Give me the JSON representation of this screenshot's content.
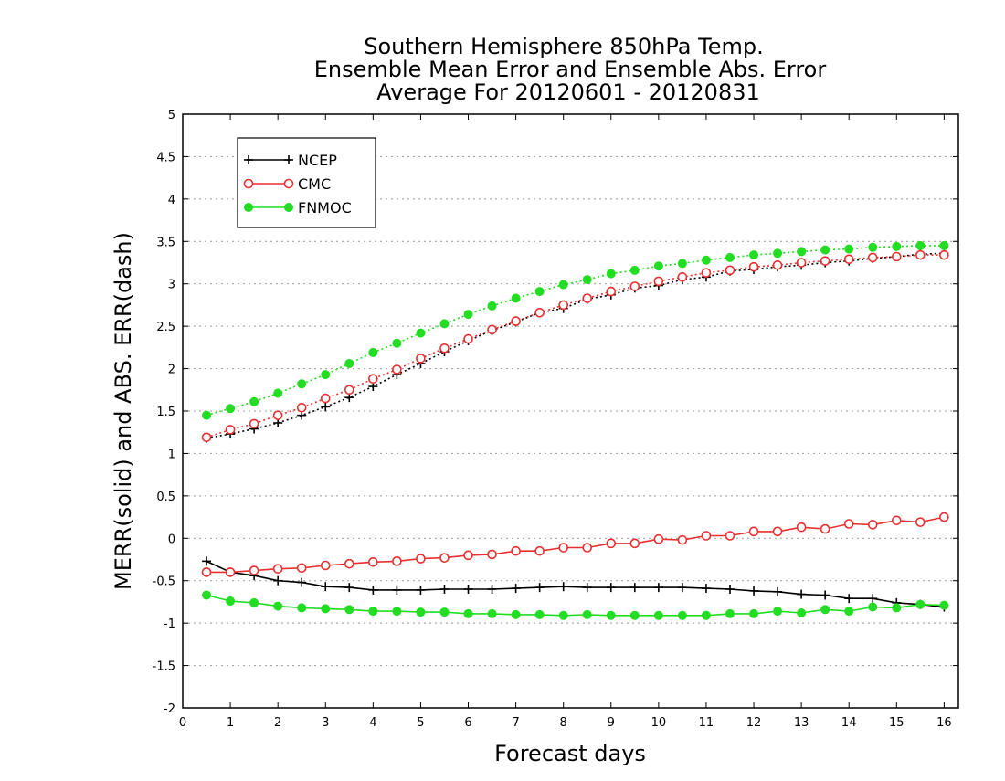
{
  "chart_data": {
    "type": "line",
    "title": [
      "Southern Hemisphere 850hPa Temp.",
      "Ensemble Mean Error and Ensemble Abs. Error",
      "Average For 20120601 - 20120831"
    ],
    "xlabel": "Forecast days",
    "ylabel": "MERR(solid) and ABS. ERR(dash)",
    "xlim": [
      0,
      16.3
    ],
    "ylim": [
      -2,
      5
    ],
    "xticks": [
      0,
      1,
      2,
      3,
      4,
      5,
      6,
      7,
      8,
      9,
      10,
      11,
      12,
      13,
      14,
      15,
      16
    ],
    "xtick_labels": [
      "0",
      "1",
      "2",
      "3",
      "4",
      "5",
      "6",
      "7",
      "8",
      "9",
      "10",
      "11",
      "12",
      "13",
      "14",
      "15",
      "16"
    ],
    "yticks": [
      -2,
      -1.5,
      -1,
      -0.5,
      0,
      0.5,
      1,
      1.5,
      2,
      2.5,
      3,
      3.5,
      4,
      4.5,
      5
    ],
    "ytick_labels": [
      "-2",
      "-1.5",
      "-1",
      "-0.5",
      "0",
      "0.5",
      "1",
      "1.5",
      "2",
      "2.5",
      "3",
      "3.5",
      "4",
      "4.5",
      "5"
    ],
    "grid": "horizontal dotted",
    "legend_position": "top-left",
    "x": [
      0.5,
      1,
      1.5,
      2,
      2.5,
      3,
      3.5,
      4,
      4.5,
      5,
      5.5,
      6,
      6.5,
      7,
      7.5,
      8,
      8.5,
      9,
      9.5,
      10,
      10.5,
      11,
      11.5,
      12,
      12.5,
      13,
      13.5,
      14,
      14.5,
      15,
      15.5,
      16
    ],
    "series": [
      {
        "name": "NCEP",
        "color": "#000000",
        "marker": "plus",
        "merr": [
          -0.27,
          -0.4,
          -0.44,
          -0.5,
          -0.52,
          -0.57,
          -0.58,
          -0.61,
          -0.61,
          -0.61,
          -0.6,
          -0.6,
          -0.6,
          -0.59,
          -0.58,
          -0.57,
          -0.58,
          -0.58,
          -0.58,
          -0.58,
          -0.58,
          -0.59,
          -0.6,
          -0.62,
          -0.63,
          -0.66,
          -0.67,
          -0.71,
          -0.71,
          -0.76,
          -0.78,
          -0.81
        ],
        "abs_err": [
          1.18,
          1.23,
          1.29,
          1.36,
          1.45,
          1.55,
          1.66,
          1.79,
          1.93,
          2.06,
          2.2,
          2.33,
          2.45,
          2.55,
          2.66,
          2.71,
          2.82,
          2.87,
          2.95,
          2.98,
          3.05,
          3.08,
          3.15,
          3.17,
          3.2,
          3.22,
          3.25,
          3.27,
          3.3,
          3.32,
          3.35,
          3.36
        ]
      },
      {
        "name": "CMC",
        "color": "#e83030",
        "marker": "open-circle",
        "merr": [
          -0.4,
          -0.4,
          -0.38,
          -0.36,
          -0.35,
          -0.32,
          -0.3,
          -0.28,
          -0.27,
          -0.24,
          -0.23,
          -0.2,
          -0.19,
          -0.15,
          -0.15,
          -0.11,
          -0.11,
          -0.06,
          -0.06,
          -0.01,
          -0.02,
          0.03,
          0.03,
          0.08,
          0.08,
          0.13,
          0.11,
          0.17,
          0.16,
          0.21,
          0.19,
          0.25
        ],
        "abs_err": [
          1.19,
          1.28,
          1.35,
          1.45,
          1.54,
          1.65,
          1.75,
          1.88,
          1.99,
          2.12,
          2.24,
          2.35,
          2.46,
          2.56,
          2.66,
          2.75,
          2.83,
          2.91,
          2.97,
          3.03,
          3.08,
          3.13,
          3.16,
          3.2,
          3.22,
          3.25,
          3.27,
          3.29,
          3.31,
          3.32,
          3.34,
          3.34
        ]
      },
      {
        "name": "FNMOC",
        "color": "#22dd22",
        "marker": "filled-circle",
        "merr": [
          -0.67,
          -0.74,
          -0.76,
          -0.8,
          -0.82,
          -0.83,
          -0.84,
          -0.86,
          -0.86,
          -0.87,
          -0.87,
          -0.89,
          -0.89,
          -0.9,
          -0.9,
          -0.91,
          -0.9,
          -0.91,
          -0.91,
          -0.91,
          -0.91,
          -0.91,
          -0.89,
          -0.89,
          -0.86,
          -0.88,
          -0.84,
          -0.86,
          -0.81,
          -0.82,
          -0.78,
          -0.79
        ],
        "abs_err": [
          1.45,
          1.53,
          1.61,
          1.71,
          1.82,
          1.93,
          2.06,
          2.19,
          2.3,
          2.42,
          2.53,
          2.64,
          2.74,
          2.83,
          2.91,
          2.99,
          3.05,
          3.12,
          3.16,
          3.21,
          3.24,
          3.28,
          3.31,
          3.34,
          3.36,
          3.38,
          3.4,
          3.41,
          3.43,
          3.44,
          3.45,
          3.45
        ]
      }
    ]
  }
}
